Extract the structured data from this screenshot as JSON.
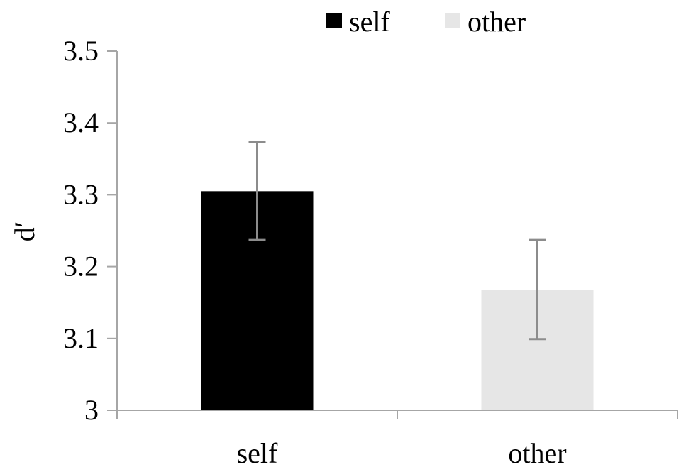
{
  "chart_data": {
    "type": "bar",
    "title": "",
    "xlabel": "",
    "ylabel": "d′",
    "categories": [
      "self",
      "other"
    ],
    "series": [
      {
        "name": "self",
        "color": "#000000",
        "values": [
          3.305,
          null
        ],
        "error": [
          0.068,
          null
        ]
      },
      {
        "name": "other",
        "color": "#e6e6e6",
        "values": [
          null,
          3.168
        ],
        "error": [
          null,
          0.069
        ]
      }
    ],
    "ylim": [
      3.0,
      3.5
    ],
    "yticks": [
      "3",
      "3.1",
      "3.2",
      "3.3",
      "3.4",
      "3.5"
    ],
    "ytick_values": [
      3.0,
      3.1,
      3.2,
      3.3,
      3.4,
      3.5
    ],
    "grid": false,
    "legend_position": "top-center",
    "axis_color": "#a6a6a6",
    "errorbar_color": "#8c8c8c"
  }
}
